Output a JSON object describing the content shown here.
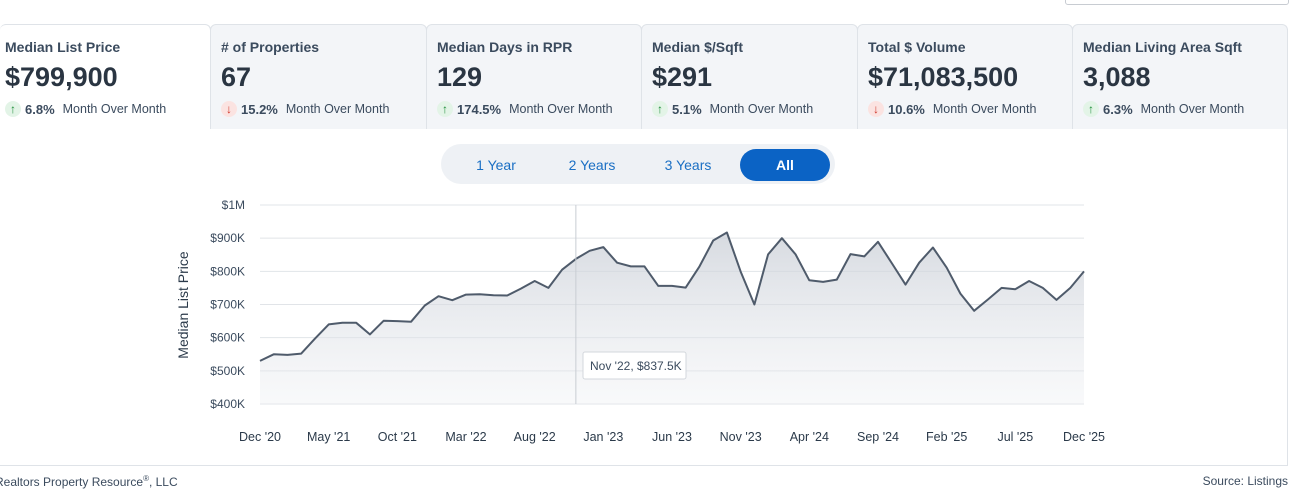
{
  "metrics": [
    {
      "title": "Median List Price",
      "value": "$799,900",
      "direction": "up",
      "change": "6.8%",
      "period": "Month Over Month",
      "active": true
    },
    {
      "title": "# of Properties",
      "value": "67",
      "direction": "down",
      "change": "15.2%",
      "period": "Month Over Month",
      "active": false
    },
    {
      "title": "Median Days in RPR",
      "value": "129",
      "direction": "up",
      "change": "174.5%",
      "period": "Month Over Month",
      "active": false
    },
    {
      "title": "Median $/Sqft",
      "value": "$291",
      "direction": "up",
      "change": "5.1%",
      "period": "Month Over Month",
      "active": false
    },
    {
      "title": "Total $ Volume",
      "value": "$71,083,500",
      "direction": "down",
      "change": "10.6%",
      "period": "Month Over Month",
      "active": false
    },
    {
      "title": "Median Living Area Sqft",
      "value": "3,088",
      "direction": "up",
      "change": "6.3%",
      "period": "Month Over Month",
      "active": false
    }
  ],
  "range": {
    "options": [
      "1 Year",
      "2 Years",
      "3 Years",
      "All"
    ],
    "selected": "All"
  },
  "chart_data": {
    "type": "area",
    "ylabel": "Median List Price",
    "ylim": [
      400000,
      1000000
    ],
    "y_ticks": [
      {
        "value": 1000000,
        "label": "$1M"
      },
      {
        "value": 900000,
        "label": "$900K"
      },
      {
        "value": 800000,
        "label": "$800K"
      },
      {
        "value": 700000,
        "label": "$700K"
      },
      {
        "value": 600000,
        "label": "$600K"
      },
      {
        "value": 500000,
        "label": "$500K"
      },
      {
        "value": 400000,
        "label": "$400K"
      }
    ],
    "x_ticks": [
      "Dec '20",
      "May '21",
      "Oct '21",
      "Mar '22",
      "Aug '22",
      "Jan '23",
      "Jun '23",
      "Nov '23",
      "Apr '24",
      "Sep '24",
      "Feb '25",
      "Jul '25",
      "Dec '25"
    ],
    "x": [
      "Dec '20",
      "Jan '21",
      "Feb '21",
      "Mar '21",
      "Apr '21",
      "May '21",
      "Jun '21",
      "Jul '21",
      "Aug '21",
      "Sep '21",
      "Oct '21",
      "Nov '21",
      "Dec '21",
      "Jan '22",
      "Feb '22",
      "Mar '22",
      "Apr '22",
      "May '22",
      "Jun '22",
      "Jul '22",
      "Aug '22",
      "Sep '22",
      "Oct '22",
      "Nov '22",
      "Dec '22",
      "Jan '23",
      "Feb '23",
      "Mar '23",
      "Apr '23",
      "May '23",
      "Jun '23",
      "Jul '23",
      "Aug '23",
      "Sep '23",
      "Oct '23",
      "Nov '23",
      "Dec '23",
      "Jan '24",
      "Feb '24",
      "Mar '24",
      "Apr '24",
      "May '24",
      "Jun '24",
      "Jul '24",
      "Aug '24",
      "Sep '24",
      "Oct '24",
      "Nov '24",
      "Dec '24",
      "Jan '25",
      "Feb '25",
      "Mar '25",
      "Apr '25",
      "May '25",
      "Jun '25",
      "Jul '25",
      "Aug '25",
      "Sep '25",
      "Oct '25",
      "Nov '25",
      "Dec '25"
    ],
    "series": [
      {
        "values": [
          530000,
          550000,
          548000,
          552000,
          597000,
          640000,
          645000,
          645000,
          610000,
          651000,
          650000,
          648000,
          697000,
          725000,
          713000,
          730000,
          731000,
          728000,
          727000,
          748000,
          771000,
          750000,
          805000,
          837500,
          862000,
          873000,
          826000,
          815000,
          815000,
          756000,
          756000,
          751000,
          815000,
          893000,
          917000,
          799000,
          700000,
          851000,
          900000,
          851000,
          773000,
          768000,
          775000,
          852000,
          845000,
          889000,
          825000,
          760000,
          826000,
          872000,
          811000,
          733000,
          681000,
          715000,
          750000,
          746000,
          771000,
          750000,
          714000,
          750000,
          799900
        ],
        "color": "#4f5b6b"
      }
    ],
    "tooltip": "Nov '22, $837.5K",
    "grid": true
  },
  "footer": {
    "left": "Realtors Property Resource",
    "left_reg": "®",
    "left_suffix": ", LLC",
    "source_label": "Source:",
    "source_value": "Listings"
  }
}
